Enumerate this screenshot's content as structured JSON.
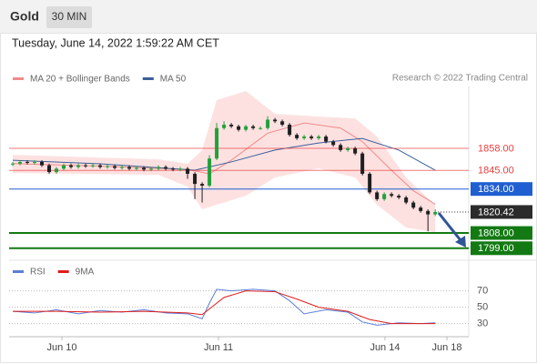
{
  "chart_data": {
    "type": "candlestick",
    "title": "Gold",
    "timeframe": "30 MIN",
    "subtitle": "Tuesday, June 14, 2022 1:59:22 AM CET",
    "credit": "Research © 2022 Trading Central",
    "up_color": "#22a03a",
    "down_color": "#1e1e1e",
    "xlim": [
      -0.5,
      62.6
    ],
    "xticks": [
      {
        "value": 6.75,
        "label": "Jun 10"
      },
      {
        "value": 28.25,
        "label": "Jun 11"
      },
      {
        "value": 51.1,
        "label": "Jun 14"
      },
      {
        "value": 59.6,
        "label": "Jun 18"
      }
    ],
    "ylim": [
      1793.5,
      1894.6
    ],
    "candles": {
      "open": [
        1848.5,
        1849,
        1850,
        1849.5,
        1850,
        1848,
        1844,
        1846,
        1848,
        1847,
        1848,
        1847.5,
        1848,
        1847,
        1847.5,
        1846.5,
        1847,
        1846,
        1846.5,
        1845.5,
        1846,
        1847,
        1846,
        1845.5,
        1846,
        1843,
        1837,
        1836,
        1852,
        1870,
        1872,
        1871,
        1869,
        1871,
        1870,
        1870,
        1875,
        1874,
        1872,
        1866,
        1864,
        1865,
        1864,
        1865,
        1862,
        1860,
        1857,
        1858,
        1855,
        1843,
        1832,
        1828,
        1831,
        1830,
        1829,
        1826,
        1823,
        1821,
        1819
      ],
      "high": [
        1850,
        1851,
        1851,
        1851,
        1851,
        1849,
        1847,
        1849,
        1849,
        1849,
        1849,
        1849,
        1849,
        1848.5,
        1848.5,
        1848,
        1848,
        1847.5,
        1847.5,
        1847,
        1848,
        1848,
        1847,
        1847,
        1847,
        1844,
        1838,
        1854,
        1873,
        1874,
        1873,
        1872,
        1872,
        1872,
        1871,
        1877,
        1876,
        1875,
        1873,
        1867,
        1866,
        1866,
        1866,
        1866,
        1863,
        1861,
        1859,
        1859,
        1856,
        1844,
        1833,
        1832,
        1832,
        1831,
        1830,
        1827,
        1824,
        1822,
        1822
      ],
      "low": [
        1847.5,
        1848,
        1848.5,
        1848.5,
        1847,
        1843,
        1843,
        1845,
        1846,
        1846,
        1846.5,
        1846.5,
        1846,
        1846,
        1845.5,
        1845.5,
        1845,
        1845,
        1844.5,
        1844.5,
        1845,
        1845,
        1844.5,
        1844.5,
        1840,
        1828,
        1826,
        1835,
        1851,
        1869,
        1870,
        1868,
        1868,
        1869,
        1869,
        1869,
        1873,
        1871,
        1865,
        1863,
        1863,
        1863,
        1863,
        1861,
        1859,
        1856,
        1856,
        1854,
        1842,
        1831,
        1827,
        1827,
        1829,
        1828,
        1825,
        1822,
        1820,
        1809,
        1818
      ],
      "close": [
        1849,
        1850,
        1849.5,
        1850,
        1848,
        1844,
        1846,
        1848,
        1847,
        1848,
        1847.5,
        1848,
        1847,
        1847.5,
        1846.5,
        1847,
        1846,
        1846.5,
        1845.5,
        1846,
        1847,
        1846,
        1845.5,
        1846,
        1843,
        1837,
        1836,
        1852,
        1870,
        1872,
        1871,
        1869,
        1871,
        1870,
        1870,
        1875,
        1874,
        1872,
        1866,
        1864,
        1865,
        1864,
        1865,
        1862,
        1860,
        1857,
        1858,
        1855,
        1843,
        1832,
        1828,
        1831,
        1830,
        1829,
        1826,
        1823,
        1821,
        1819,
        1820.42
      ]
    },
    "series": [
      {
        "name": "MA 20 + Bollinger Bands",
        "color": "#f08a8a",
        "band_color": "#fde1e1",
        "x": [
          0,
          12,
          24,
          27,
          30,
          35,
          40,
          45,
          48,
          52,
          55,
          58
        ],
        "values": [
          1849,
          1847.5,
          1845.5,
          1843,
          1851,
          1867,
          1873,
          1870,
          1862,
          1845,
          1833,
          1825
        ],
        "band_x": [
          0,
          20,
          24,
          26,
          28,
          32,
          36,
          42,
          47,
          50,
          54,
          58
        ],
        "upper": [
          1854.2,
          1851.5,
          1848.9,
          1856.9,
          1886.5,
          1891.9,
          1878.4,
          1876.8,
          1875.7,
          1865,
          1840.8,
          1824.7
        ],
        "lower": [
          1843.5,
          1842.4,
          1835.4,
          1822,
          1824.7,
          1830,
          1840.8,
          1846.2,
          1840.8,
          1824.7,
          1811.2,
          1808.5
        ]
      },
      {
        "name": "MA 50",
        "color": "#3a5f9a",
        "x": [
          0,
          12,
          25,
          30,
          36,
          42,
          48,
          53,
          58
        ],
        "values": [
          1851,
          1848.9,
          1845.1,
          1850,
          1857,
          1861.2,
          1863.9,
          1857,
          1845.1
        ]
      }
    ],
    "levels": [
      {
        "value": 1858,
        "label": "1858.00",
        "color": "#e8403f",
        "style": "plain"
      },
      {
        "value": 1845,
        "label": "1845.00",
        "color": "#e8403f",
        "style": "plain"
      },
      {
        "value": 1834,
        "label": "1834.00",
        "color": "#1f5fd1",
        "style": "box"
      },
      {
        "value": 1820.42,
        "label": "1820.42",
        "color": "#2b2b2b",
        "style": "dotted"
      },
      {
        "value": 1808,
        "label": "1808.00",
        "color": "#137a13",
        "style": "thick"
      },
      {
        "value": 1799,
        "label": "1799.00",
        "color": "#137a13",
        "style": "thick"
      }
    ],
    "rsi": {
      "ylim": [
        14,
        103
      ],
      "yticks": [
        70,
        50,
        30
      ],
      "series": [
        {
          "name": "RSI",
          "color": "#5b7fd6",
          "x": [
            0,
            3,
            6,
            9,
            12,
            15,
            18,
            21,
            24,
            26,
            27,
            28,
            30,
            33,
            36,
            38,
            40,
            43,
            46,
            48,
            50,
            53,
            56,
            58
          ],
          "values": [
            45,
            43,
            47,
            42,
            46,
            44,
            47,
            43,
            42,
            36,
            55,
            72,
            70,
            72,
            70,
            58,
            42,
            47,
            44,
            32,
            28,
            31,
            30,
            31
          ]
        },
        {
          "name": "9MA",
          "color": "#e01b1b",
          "x": [
            0,
            6,
            12,
            18,
            24,
            26,
            29,
            32,
            36,
            39,
            42,
            46,
            49,
            52,
            58
          ],
          "values": [
            45,
            45,
            44,
            45,
            43,
            41,
            62,
            70,
            69,
            60,
            50,
            45,
            35,
            30,
            30
          ]
        }
      ]
    }
  }
}
